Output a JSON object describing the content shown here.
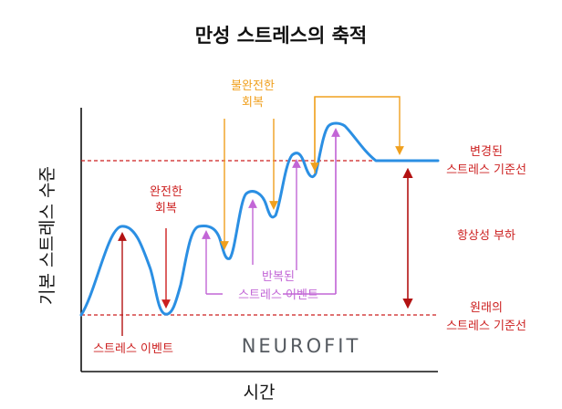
{
  "title": "만성 스트레스의 축적",
  "x_axis_label": "시간",
  "y_axis_label": "기본 스트레스 수준",
  "brand": "NEUROFIT",
  "annotations": {
    "complete_recovery": [
      "완전한",
      "회복"
    ],
    "incomplete_recovery": [
      "불완전한",
      "회복"
    ],
    "repeated_events": [
      "반복된",
      "스트레스 이벤트"
    ],
    "stress_event": "스트레스 이벤트",
    "changed_baseline": [
      "변경된",
      "스트레스 기준선"
    ],
    "allostatic_load": "항상성 부하",
    "original_baseline": [
      "원래의",
      "스트레스 기준선"
    ]
  },
  "colors": {
    "curve": "#2b8fe3",
    "baseline": "#cc1f1f",
    "stress_event": "#cc1f1f",
    "incomplete_recovery": "#f0a01e",
    "repeated_events": "#c266d6",
    "axis": "#111111"
  }
}
